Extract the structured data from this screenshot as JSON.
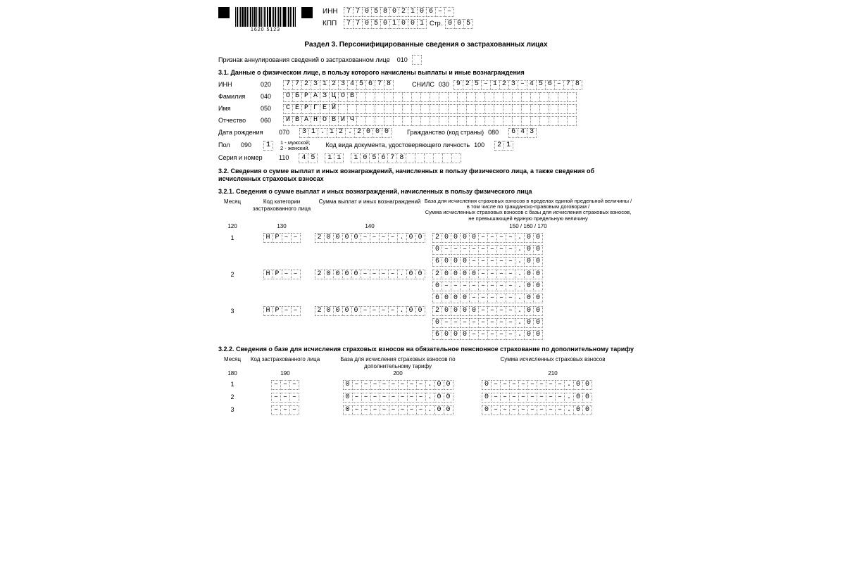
{
  "barcode_label": "1620  5123",
  "inn_label": "ИНН",
  "kpp_label": "КПП",
  "page_label": "Стр.",
  "inn": "7705802106--",
  "kpp": "770501001",
  "page": "005",
  "section_title": "Раздел 3. Персонифицированные сведения о застрахованных лицах",
  "annul_label": "Признак аннулирования сведений о застрахованном лице",
  "annul_code": "010",
  "s31_title": "3.1. Данные о физическом лице, в пользу которого начислены выплаты и иные вознаграждения",
  "s31": {
    "inn_label": "ИНН",
    "inn_code": "020",
    "inn": "772312345678",
    "snils_label": "СНИЛС",
    "snils_code": "030",
    "snils": "925-123-456-78",
    "fam_label": "Фамилия",
    "fam_code": "040",
    "fam": "ОБРАЗЦОВ",
    "name_label": "Имя",
    "name_code": "050",
    "name": "СЕРГЕЙ",
    "patr_label": "Отчество",
    "patr_code": "060",
    "patr": "ИВАНОВИЧ",
    "dob_label": "Дата рождения",
    "dob_code": "070",
    "dob": "31.12.2000",
    "cit_label": "Гражданство (код страны)",
    "cit_code": "080",
    "cit": "643",
    "sex_label": "Пол",
    "sex_code": "090",
    "sex": "1",
    "sex_hint": "1 - мужской;\n2 - женский.",
    "doc_label": "Код вида документа, удостоверяющего личность",
    "doc_code": "100",
    "doc": "21",
    "ser_label": "Серия и номер",
    "ser_code": "110",
    "ser1": "45",
    "ser2": "11",
    "ser3": "105678"
  },
  "s32_title": "3.2. Сведения о сумме выплат и иных вознаграждений, начисленных в пользу физического лица, а также сведения об исчисленных страховых взносах",
  "s321_title": "3.2.1. Сведения о сумме выплат и иных вознаграждений, начисленных в пользу физического лица",
  "s321": {
    "h_month": "Месяц",
    "h_cat": "Код категории застрахованного лица",
    "h_sum": "Сумма выплат и иных вознаграждений",
    "h_base": "База для исчисления страховых взносов в пределах единой предельной величины /\nв том числе по гражданско-правовым договорам /\nСумма исчисленных страховых взносов с базы для исчисления страховых взносов, не превышающей единую предельную величину",
    "c_month": "120",
    "c_cat": "130",
    "c_sum": "140",
    "c_base": "150 / 160 / 170",
    "rows": [
      {
        "m": "1",
        "cat": "НР--",
        "sum": "20000----.00",
        "base": [
          "20000----.00",
          "0--------.00",
          "6000-----.00"
        ]
      },
      {
        "m": "2",
        "cat": "НР--",
        "sum": "20000----.00",
        "base": [
          "20000----.00",
          "0--------.00",
          "6000-----.00"
        ]
      },
      {
        "m": "3",
        "cat": "НР--",
        "sum": "20000----.00",
        "base": [
          "20000----.00",
          "0--------.00",
          "6000-----.00"
        ]
      }
    ]
  },
  "s322_title": "3.2.2. Сведения о базе для исчисления страховых взносов на обязательное пенсионное страхование по дополнительному тарифу",
  "s322": {
    "h_month": "Месяц",
    "h_cat": "Код застрахованного лица",
    "h_base": "База для исчисления страховых взносов по дополнительному тарифу",
    "h_sum": "Сумма исчисленных страховых взносов",
    "c_month": "180",
    "c_cat": "190",
    "c_base": "200",
    "c_sum": "210",
    "rows": [
      {
        "m": "1",
        "cat": "---",
        "base": "0--------.00",
        "sum": "0--------.00"
      },
      {
        "m": "2",
        "cat": "---",
        "base": "0--------.00",
        "sum": "0--------.00"
      },
      {
        "m": "3",
        "cat": "---",
        "base": "0--------.00",
        "sum": "0--------.00"
      }
    ]
  },
  "emptycell": " ",
  "dash": "–"
}
